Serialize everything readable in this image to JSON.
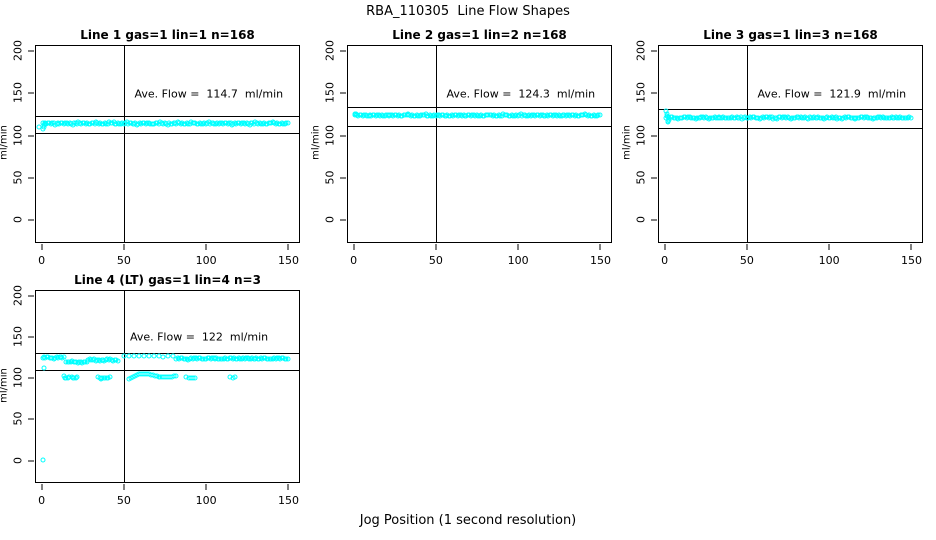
{
  "figure": {
    "title": "RBA_110305  Line Flow Shapes",
    "xlabel": "Jog Position (1 second resolution)"
  },
  "colors": {
    "point": "#00ffff",
    "axis": "#000000",
    "background": "#ffffff"
  },
  "chart_data": [
    {
      "type": "scatter",
      "title": "Line 1 gas=1 lin=1 n=168",
      "ylabel": "ml/min",
      "annotation": "Ave. Flow =  114.7  ml/min",
      "ave_flow": 114.7,
      "n": 168,
      "gas": 1,
      "lin": 1,
      "x_ticks": [
        0,
        50,
        100,
        150
      ],
      "y_ticks": [
        0,
        50,
        100,
        150,
        200
      ],
      "xlim": [
        -4,
        157
      ],
      "ylim": [
        -27.3,
        207.4
      ],
      "vline_x": 50,
      "hlines": [
        123.9,
        103.2
      ],
      "band_segments": [
        {
          "x0": 0.5,
          "x1": 150,
          "n": 168,
          "y": 114.7,
          "amp": 1.4
        }
      ],
      "extra_points": [
        [
          -2.3,
          110
        ],
        [
          0.4,
          108.5
        ],
        [
          0.8,
          110.5
        ],
        [
          1.2,
          112.5
        ],
        [
          1.8,
          113.8
        ]
      ]
    },
    {
      "type": "scatter",
      "title": "Line 2 gas=1 lin=2 n=168",
      "ylabel": "ml/min",
      "annotation": "Ave. Flow =  124.3  ml/min",
      "ave_flow": 124.3,
      "n": 168,
      "gas": 1,
      "lin": 2,
      "x_ticks": [
        0,
        50,
        100,
        150
      ],
      "y_ticks": [
        0,
        50,
        100,
        150,
        200
      ],
      "xlim": [
        -4,
        157
      ],
      "ylim": [
        -27.3,
        207.4
      ],
      "vline_x": 50,
      "hlines": [
        134.2,
        111.9
      ],
      "band_segments": [
        {
          "x0": 0.5,
          "x1": 150,
          "n": 168,
          "y": 124.3,
          "amp": 1.2
        }
      ],
      "extra_points": [
        [
          0.4,
          126.5
        ],
        [
          0.9,
          125.5
        ]
      ]
    },
    {
      "type": "scatter",
      "title": "Line 3 gas=1 lin=3 n=168",
      "ylabel": "ml/min",
      "annotation": "Ave. Flow =  121.9  ml/min",
      "ave_flow": 121.9,
      "n": 168,
      "gas": 1,
      "lin": 3,
      "x_ticks": [
        0,
        50,
        100,
        150
      ],
      "y_ticks": [
        0,
        50,
        100,
        150,
        200
      ],
      "xlim": [
        -4,
        157
      ],
      "ylim": [
        -27.3,
        207.4
      ],
      "vline_x": 50,
      "hlines": [
        131.6,
        109.7
      ],
      "band_segments": [
        {
          "x0": 0.5,
          "x1": 150,
          "n": 168,
          "y": 121.5,
          "amp": 1.2
        }
      ],
      "extra_points": [
        [
          0.4,
          129
        ],
        [
          0.6,
          126.5
        ],
        [
          0.9,
          124
        ],
        [
          1.3,
          118
        ],
        [
          1.8,
          116.5
        ],
        [
          2.4,
          118.5
        ]
      ]
    },
    {
      "type": "scatter",
      "title": "Line 4 (LT) gas=1 lin=4 n=3",
      "ylabel": "ml/min",
      "annotation": "Ave. Flow =  122  ml/min",
      "ave_flow": 122,
      "n": 3,
      "gas": 1,
      "lin": 4,
      "x_ticks": [
        0,
        50,
        100,
        150
      ],
      "y_ticks": [
        0,
        50,
        100,
        150,
        200
      ],
      "xlim": [
        -4,
        157
      ],
      "ylim": [
        -27.3,
        207.4
      ],
      "vline_x": 50,
      "hlines": [
        131.8,
        109.8
      ],
      "band_segments": [
        {
          "x0": 0,
          "x1": 13,
          "n": 16,
          "y": 125.5,
          "amp": 1.2
        },
        {
          "x0": 14.5,
          "x1": 27,
          "n": 15,
          "y": 120.0,
          "amp": 1.0
        },
        {
          "x0": 28,
          "x1": 46,
          "n": 21,
          "y": 122.5,
          "amp": 1.2
        },
        {
          "x0": 50,
          "x1": 80,
          "n": 11,
          "y": 127.3,
          "amp": 0.8
        },
        {
          "x0": 82,
          "x1": 150,
          "n": 76,
          "y": 124.3,
          "amp": 1.1
        }
      ],
      "extra_points": [
        [
          0,
          0
        ],
        [
          0.6,
          113
        ],
        [
          13,
          102.5
        ],
        [
          13.8,
          101
        ],
        [
          14.6,
          100.2
        ],
        [
          15.4,
          100.6
        ],
        [
          16.2,
          101.6
        ],
        [
          17.8,
          101.8
        ],
        [
          18.6,
          100.4
        ],
        [
          19.4,
          99.9
        ],
        [
          20.2,
          100.4
        ],
        [
          21,
          101.6
        ],
        [
          34,
          101.8
        ],
        [
          34.9,
          100.4
        ],
        [
          35.8,
          99.8
        ],
        [
          36.7,
          100
        ],
        [
          37.6,
          100.4
        ],
        [
          38.5,
          100.9
        ],
        [
          39.4,
          100.1
        ],
        [
          40.3,
          100.7
        ],
        [
          41.2,
          101.9
        ],
        [
          53,
          99.6
        ],
        [
          54.2,
          100.8
        ],
        [
          55.4,
          102
        ],
        [
          56.6,
          103.2
        ],
        [
          57.8,
          104.2
        ],
        [
          59,
          105
        ],
        [
          60.2,
          105.6
        ],
        [
          61.4,
          105.9
        ],
        [
          62.6,
          105.8
        ],
        [
          63.8,
          105.4
        ],
        [
          65,
          104.9
        ],
        [
          66.2,
          104.3
        ],
        [
          67.4,
          103.7
        ],
        [
          68.6,
          103.1
        ],
        [
          69.8,
          102.6
        ],
        [
          71,
          102.1
        ],
        [
          72.2,
          101.7
        ],
        [
          73.4,
          101.4
        ],
        [
          74.6,
          101.3
        ],
        [
          75.8,
          101.4
        ],
        [
          77,
          101.6
        ],
        [
          78.2,
          101.9
        ],
        [
          79.4,
          102.2
        ],
        [
          80.6,
          102.4
        ],
        [
          82,
          102.5
        ],
        [
          88,
          101.2
        ],
        [
          89.4,
          100.4
        ],
        [
          90.8,
          100
        ],
        [
          92.2,
          100.4
        ],
        [
          93.6,
          101.1
        ],
        [
          115,
          101.6
        ],
        [
          116.4,
          100.9
        ],
        [
          117.8,
          101.2
        ]
      ],
      "annotation_pos": {
        "left_pct": 62,
        "top_pct": 24.3
      }
    }
  ],
  "layout_note": "4 small-multiple scatter panels, cyan open-circle points, black reference lines"
}
